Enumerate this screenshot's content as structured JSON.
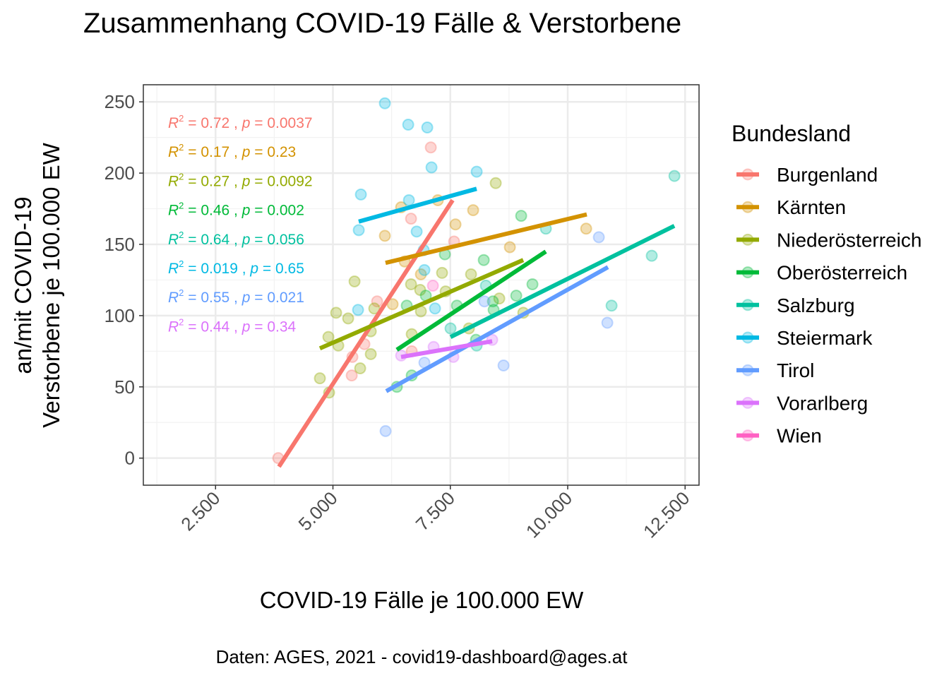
{
  "chart_data": {
    "type": "scatter",
    "title": "Zusammenhang COVID-19 Fälle & Verstorbene",
    "xlabel": "COVID-19 Fälle je 100.000 EW",
    "ylabel_lines": [
      "an/mit COVID-19",
      "Verstorbene je 100.000 EW"
    ],
    "caption": "Daten: AGES, 2021 - covid19-dashboard@ages.at",
    "xlim": [
      962,
      12797
    ],
    "ylim": [
      -19,
      262
    ],
    "xticks": [
      2500,
      5000,
      7500,
      10000,
      12500
    ],
    "xtick_labels": [
      "2.500",
      "5.000",
      "7.500",
      "10.000",
      "12.500"
    ],
    "yticks": [
      0,
      50,
      100,
      150,
      200,
      250
    ],
    "ytick_labels": [
      "0",
      "50",
      "100",
      "150",
      "200",
      "250"
    ],
    "grid": true,
    "legend": {
      "title": "Bundesland",
      "position": "right"
    },
    "series": [
      {
        "name": "Burgenland",
        "color": "#F8766D",
        "r2": "0.72",
        "p": "0.0037",
        "fit": [
          [
            3850,
            -6
          ],
          [
            7550,
            181
          ]
        ],
        "points": [
          [
            3835,
            0
          ],
          [
            7084,
            218
          ],
          [
            6663,
            168
          ],
          [
            7580,
            152
          ],
          [
            5941,
            110
          ],
          [
            5670,
            80
          ],
          [
            5414,
            71
          ],
          [
            5400,
            58
          ],
          [
            6678,
            75
          ]
        ]
      },
      {
        "name": "Kärnten",
        "color": "#D39200",
        "r2": "0.17",
        "p": "0.23",
        "fit": [
          [
            6120,
            137
          ],
          [
            10406,
            171
          ]
        ],
        "points": [
          [
            6452,
            176
          ],
          [
            7234,
            181
          ],
          [
            7986,
            174
          ],
          [
            6106,
            156
          ],
          [
            7610,
            164
          ],
          [
            8768,
            148
          ],
          [
            10393,
            161
          ],
          [
            6527,
            138
          ],
          [
            6873,
            129
          ],
          [
            6271,
            108
          ]
        ]
      },
      {
        "name": "Niederösterreich",
        "color": "#93AA00",
        "r2": "0.27",
        "p": "0.0092",
        "fit": [
          [
            4722,
            77
          ],
          [
            9053,
            139
          ]
        ],
        "points": [
          [
            8467,
            193
          ],
          [
            5460,
            124
          ],
          [
            5068,
            102
          ],
          [
            5324,
            98
          ],
          [
            4903,
            85
          ],
          [
            4722,
            56
          ],
          [
            4918,
            46
          ],
          [
            5114,
            79
          ],
          [
            5580,
            63
          ],
          [
            5806,
            73
          ],
          [
            5880,
            105
          ],
          [
            6663,
            122
          ],
          [
            6858,
            118
          ],
          [
            7324,
            130
          ],
          [
            7400,
            117
          ],
          [
            7941,
            129
          ],
          [
            7896,
            91
          ],
          [
            8543,
            112
          ],
          [
            9054,
            102
          ],
          [
            6873,
            103
          ],
          [
            6678,
            87
          ],
          [
            5806,
            89
          ]
        ]
      },
      {
        "name": "Oberösterreich",
        "color": "#00BA38",
        "r2": "0.46",
        "p": "0.002",
        "fit": [
          [
            6361,
            76
          ],
          [
            9534,
            145
          ]
        ],
        "points": [
          [
            9009,
            170
          ],
          [
            8212,
            139
          ],
          [
            7384,
            143
          ],
          [
            9249,
            122
          ],
          [
            8904,
            114
          ],
          [
            6978,
            114
          ],
          [
            6572,
            107
          ],
          [
            7640,
            107
          ],
          [
            8422,
            104
          ],
          [
            8407,
            110
          ],
          [
            8046,
            83
          ],
          [
            6361,
            50
          ],
          [
            6678,
            58
          ]
        ]
      },
      {
        "name": "Salzburg",
        "color": "#00C19F",
        "r2": "0.64",
        "p": "0.056",
        "fit": [
          [
            7504,
            85
          ],
          [
            12271,
            163
          ]
        ],
        "points": [
          [
            12273,
            198
          ],
          [
            11790,
            142
          ],
          [
            10934,
            107
          ],
          [
            9535,
            161
          ],
          [
            7504,
            91
          ],
          [
            8257,
            121
          ],
          [
            8060,
            79
          ]
        ]
      },
      {
        "name": "Steiermark",
        "color": "#00B9E3",
        "r2": "0.019",
        "p": "0.65",
        "fit": [
          [
            5549,
            166
          ],
          [
            8060,
            189
          ]
        ],
        "points": [
          [
            6106,
            249
          ],
          [
            6603,
            234
          ],
          [
            7009,
            232
          ],
          [
            7099,
            204
          ],
          [
            8061,
            201
          ],
          [
            5595,
            185
          ],
          [
            6618,
            181
          ],
          [
            5550,
            160
          ],
          [
            6783,
            159
          ],
          [
            6933,
            146
          ],
          [
            6948,
            132
          ],
          [
            5535,
            104
          ],
          [
            7174,
            105
          ]
        ]
      },
      {
        "name": "Tirol",
        "color": "#619CFF",
        "r2": "0.55",
        "p": "0.021",
        "fit": [
          [
            6135,
            47
          ],
          [
            10857,
            134
          ]
        ],
        "points": [
          [
            10663,
            155
          ],
          [
            10844,
            95
          ],
          [
            8633,
            65
          ],
          [
            6948,
            67
          ],
          [
            6121,
            19
          ],
          [
            8227,
            110
          ]
        ]
      },
      {
        "name": "Vorarlberg",
        "color": "#DB72FB",
        "r2": "0.44",
        "p": "0.34",
        "fit": [
          [
            6451,
            71
          ],
          [
            8391,
            82
          ]
        ],
        "points": [
          [
            6452,
            72
          ],
          [
            7144,
            78
          ],
          [
            7565,
            71
          ],
          [
            8392,
            83
          ]
        ]
      },
      {
        "name": "Wien",
        "color": "#FF61C3",
        "r2": null,
        "p": null,
        "fit": null,
        "points": [
          [
            7129,
            121
          ]
        ]
      }
    ]
  }
}
